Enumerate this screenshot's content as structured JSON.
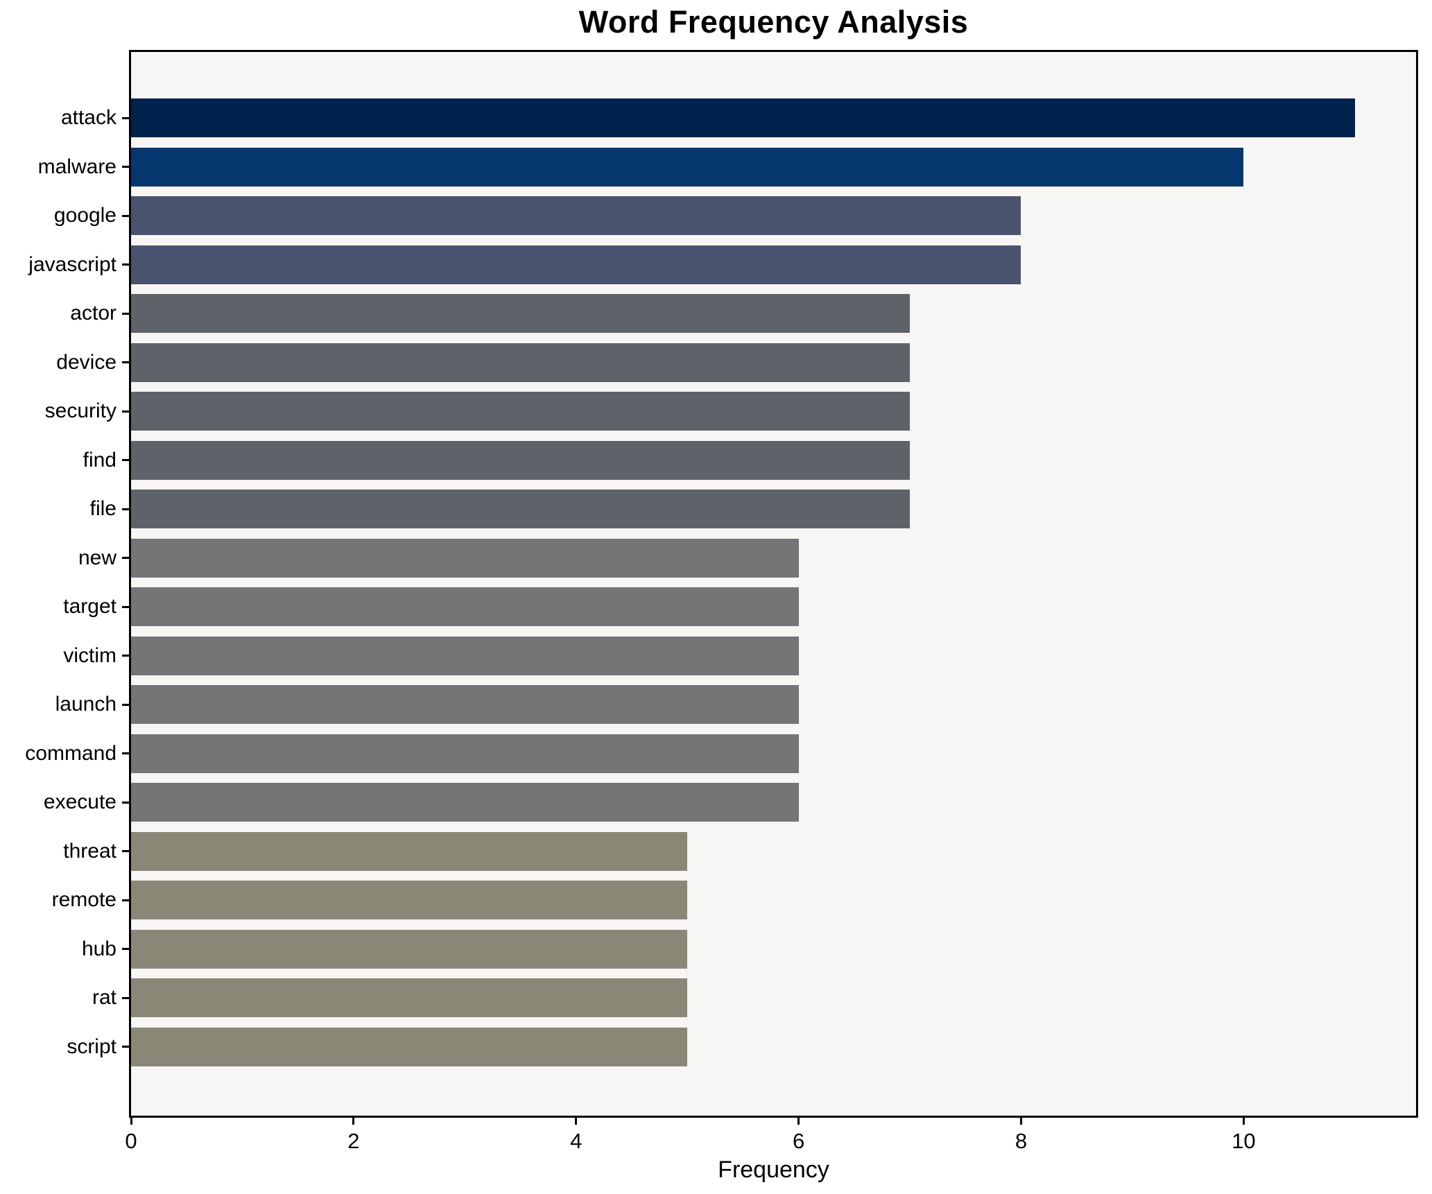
{
  "chart": {
    "title": "Word Frequency Analysis",
    "xlabel": "Frequency",
    "figure_background": "#ffffff",
    "plot_background": "#f7f6f4",
    "axis_color": "#000000",
    "text_color": "#000000"
  },
  "chart_data": {
    "type": "bar",
    "orientation": "horizontal",
    "title": "Word Frequency Analysis",
    "xlabel": "Frequency",
    "ylabel": "",
    "categories": [
      "attack",
      "malware",
      "google",
      "javascript",
      "actor",
      "device",
      "security",
      "find",
      "file",
      "new",
      "target",
      "victim",
      "launch",
      "command",
      "execute",
      "threat",
      "remote",
      "hub",
      "rat",
      "script"
    ],
    "values": [
      11,
      10,
      8,
      8,
      7,
      7,
      7,
      7,
      7,
      6,
      6,
      6,
      6,
      6,
      6,
      5,
      5,
      5,
      5,
      5
    ],
    "bar_colors": [
      "#00234d",
      "#06386f",
      "#4a536e",
      "#4a536e",
      "#5e6269",
      "#5e6269",
      "#5e6269",
      "#5e6269",
      "#5e6269",
      "#757577",
      "#757577",
      "#757577",
      "#757577",
      "#757577",
      "#757577",
      "#8a8777",
      "#8a8777",
      "#8a8777",
      "#8a8777",
      "#8a8777"
    ],
    "xticks": [
      0,
      2,
      4,
      6,
      8,
      10
    ],
    "xtick_labels": [
      "0",
      "2",
      "4",
      "6",
      "8",
      "10"
    ],
    "xlim": [
      0,
      11.55
    ],
    "grid": false,
    "legend": null
  }
}
